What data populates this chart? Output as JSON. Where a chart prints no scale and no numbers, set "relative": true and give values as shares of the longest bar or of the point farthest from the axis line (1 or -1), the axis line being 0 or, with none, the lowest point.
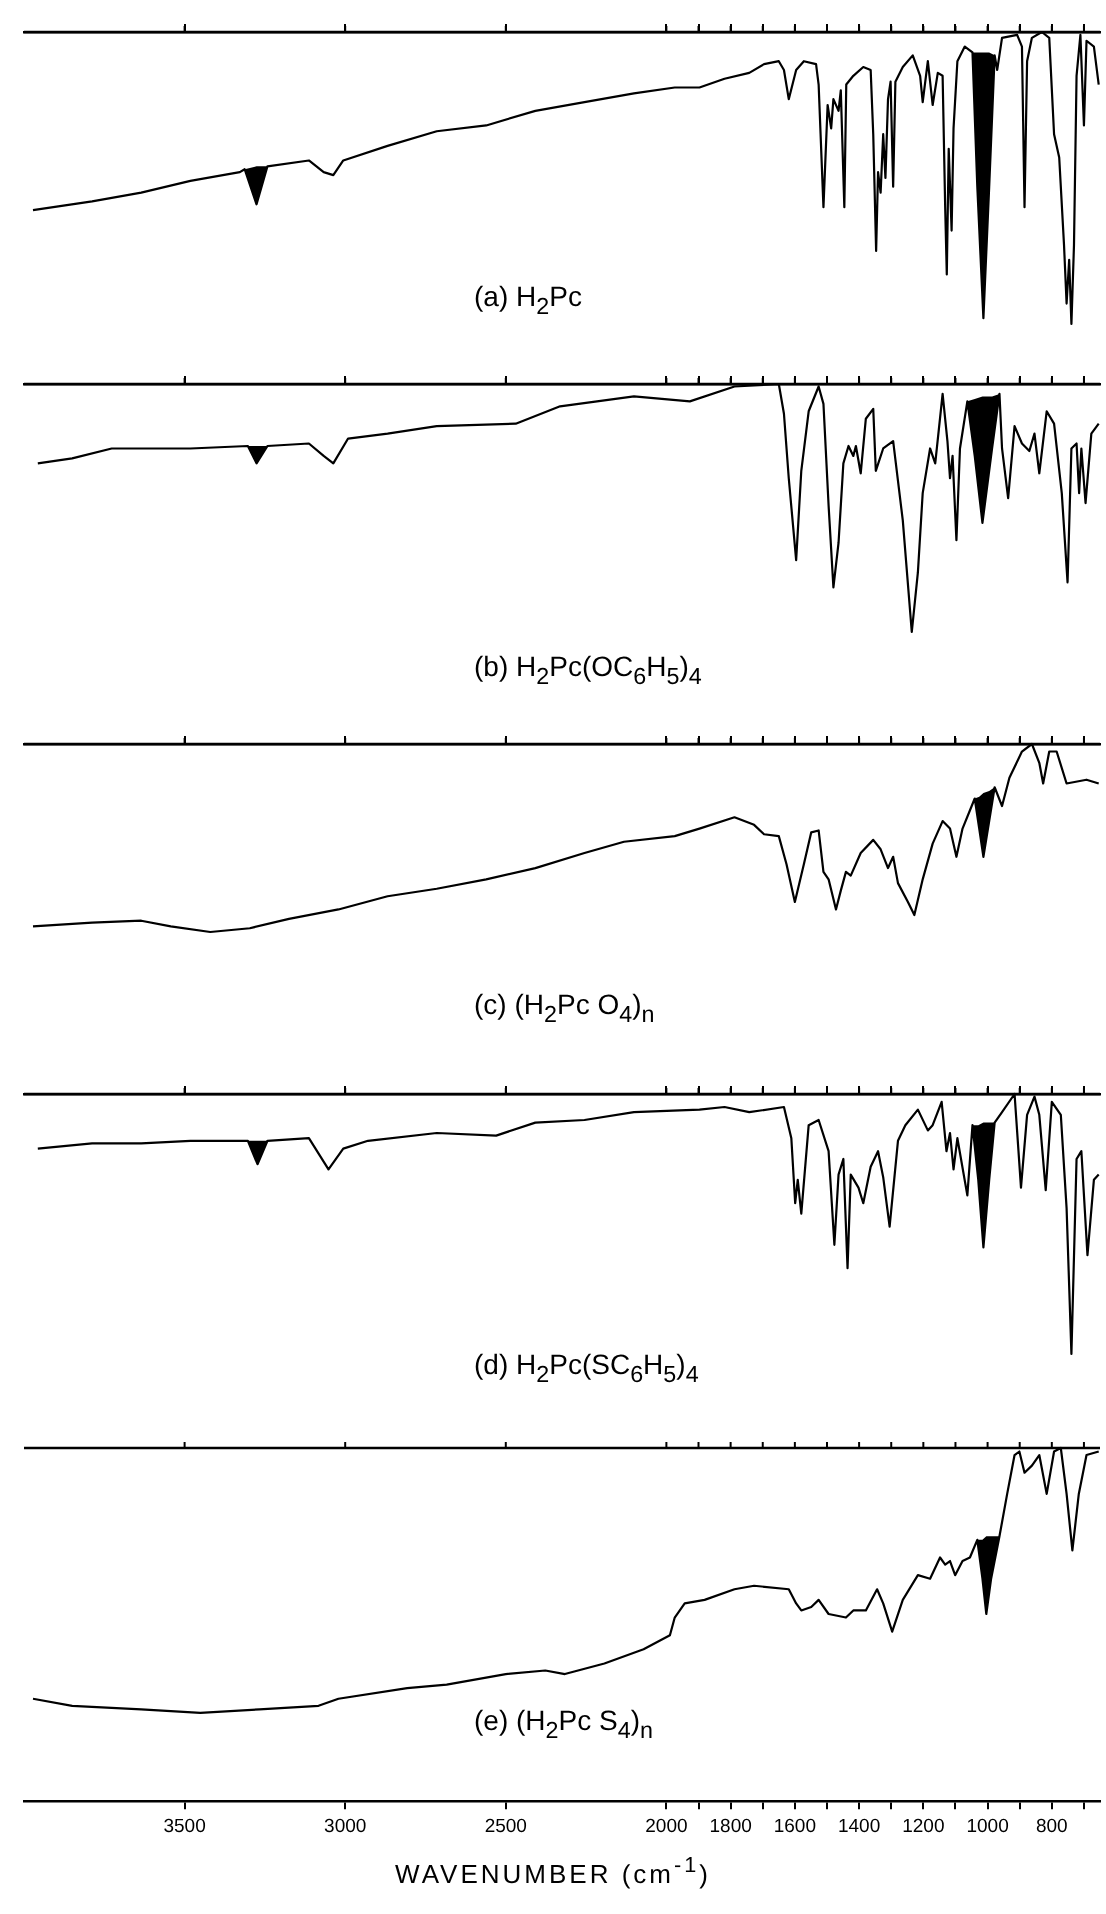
{
  "chart_data": [
    {
      "type": "line",
      "title": "(a) H$_{2}$Pc",
      "relative": true,
      "xlim": [
        4000,
        650
      ],
      "tick_labels": false,
      "xticks": [
        3500,
        3000,
        2500,
        2000,
        {
          "value": 1900,
          "label": null
        },
        1800,
        {
          "value": 1700,
          "label": null
        },
        1600,
        {
          "value": 1500,
          "label": null
        },
        1400,
        {
          "value": 1300,
          "label": null
        },
        1200,
        {
          "value": 1100,
          "label": null
        },
        1000,
        {
          "value": 900,
          "label": null
        },
        800,
        {
          "value": 700,
          "label": null
        }
      ],
      "series": [
        {
          "color": "#000000",
          "x": [
            3972,
            3788,
            3635,
            3482,
            3328,
            3313,
            3276,
            3242,
            3113,
            3067,
            3037,
            3006,
            2868,
            2715,
            2561,
            2408,
            2255,
            2101,
            1974,
            1897,
            1819,
            1742,
            1696,
            1650,
            1634,
            1619,
            1596,
            1572,
            1534,
            1526,
            1511,
            1498,
            1487,
            1480,
            1464,
            1457,
            1446,
            1440,
            1418,
            1387,
            1364,
            1356,
            1347,
            1341,
            1333,
            1325,
            1318,
            1310,
            1302,
            1294,
            1287,
            1264,
            1233,
            1210,
            1202,
            1186,
            1171,
            1155,
            1140,
            1132,
            1127,
            1121,
            1112,
            1106,
            1094,
            1071,
            1047,
            1032,
            1013,
            995,
            978,
            970,
            955,
            908,
            893,
            885,
            877,
            862,
            831,
            808,
            793,
            777,
            762,
            754,
            746,
            739,
            731,
            723,
            711,
            700,
            692,
            669,
            654
          ],
          "values": [
            0.39,
            0.42,
            0.45,
            0.49,
            0.52,
            0.53,
            0.41,
            0.54,
            0.56,
            0.52,
            0.51,
            0.56,
            0.61,
            0.66,
            0.68,
            0.73,
            0.76,
            0.79,
            0.81,
            0.81,
            0.84,
            0.86,
            0.89,
            0.9,
            0.87,
            0.77,
            0.87,
            0.9,
            0.89,
            0.82,
            0.4,
            0.75,
            0.67,
            0.77,
            0.73,
            0.8,
            0.4,
            0.82,
            0.85,
            0.88,
            0.87,
            0.65,
            0.25,
            0.52,
            0.45,
            0.65,
            0.5,
            0.77,
            0.83,
            0.47,
            0.83,
            0.88,
            0.92,
            0.85,
            0.76,
            0.9,
            0.75,
            0.86,
            0.85,
            0.4,
            0.17,
            0.6,
            0.32,
            0.67,
            0.9,
            0.95,
            0.93,
            0.47,
            0.02,
            0.47,
            0.92,
            0.87,
            0.98,
            0.99,
            0.95,
            0.4,
            0.9,
            0.98,
            1,
            0.98,
            0.65,
            0.57,
            0.27,
            0.07,
            0.22,
            0,
            0.27,
            0.85,
            0.99,
            0.68,
            0.97,
            0.95,
            0.82
          ],
          "lower": [
            null,
            null,
            null,
            null,
            null,
            0.53,
            0.41,
            0.54,
            null,
            null,
            null,
            null,
            null,
            null,
            null,
            null,
            null,
            null,
            null,
            null,
            null,
            null,
            null,
            null,
            null,
            null,
            null,
            null,
            null,
            null,
            null,
            null,
            null,
            null,
            null,
            null,
            null,
            null,
            null,
            null,
            null,
            null,
            null,
            null,
            null,
            null,
            null,
            null,
            null,
            null,
            null,
            null,
            null,
            null,
            null,
            null,
            null,
            null,
            null,
            null,
            null,
            null,
            null,
            null,
            null,
            null,
            0.93,
            0.47,
            0.02,
            0.47,
            0.92,
            null,
            null,
            null,
            null,
            null,
            null,
            null,
            null,
            null,
            null,
            null,
            null,
            null,
            null,
            null,
            null,
            null,
            null,
            null,
            null,
            null,
            null
          ],
          "upper": [
            null,
            null,
            null,
            null,
            null,
            0.53,
            0.54,
            0.54,
            null,
            null,
            null,
            null,
            null,
            null,
            null,
            null,
            null,
            null,
            null,
            null,
            null,
            null,
            null,
            null,
            null,
            null,
            null,
            null,
            null,
            null,
            null,
            null,
            null,
            null,
            null,
            null,
            null,
            null,
            null,
            null,
            null,
            null,
            null,
            null,
            null,
            null,
            null,
            null,
            null,
            null,
            null,
            null,
            null,
            null,
            null,
            null,
            null,
            null,
            null,
            null,
            null,
            null,
            null,
            null,
            null,
            null,
            0.93,
            0.93,
            0.93,
            0.93,
            0.92,
            null,
            null,
            null,
            null,
            null,
            null,
            null,
            null,
            null,
            null,
            null,
            null,
            null,
            null,
            null,
            null,
            null,
            null,
            null,
            null,
            null,
            null
          ]
        }
      ]
    },
    {
      "type": "line",
      "title": "(b) H$_{2}$Pc(OC$_{6}$H$_{5}$)$_{4}$",
      "relative": true,
      "xlim": [
        4000,
        650
      ],
      "tick_labels": false,
      "xticks": [
        3500,
        3000,
        2500,
        2000,
        {
          "value": 1900,
          "label": null
        },
        1800,
        {
          "value": 1700,
          "label": null
        },
        1600,
        {
          "value": 1500,
          "label": null
        },
        1400,
        {
          "value": 1300,
          "label": null
        },
        1200,
        {
          "value": 1100,
          "label": null
        },
        1000,
        {
          "value": 900,
          "label": null
        },
        800,
        {
          "value": 700,
          "label": null
        }
      ],
      "series": [
        {
          "color": "#000000",
          "x": [
            3957,
            3850,
            3727,
            3482,
            3303,
            3276,
            3242,
            3113,
            3067,
            3037,
            2991,
            2868,
            2715,
            2469,
            2331,
            2101,
            1927,
            1788,
            1650,
            1634,
            1619,
            1596,
            1580,
            1557,
            1526,
            1511,
            1495,
            1480,
            1464,
            1449,
            1433,
            1418,
            1410,
            1395,
            1379,
            1356,
            1348,
            1325,
            1294,
            1264,
            1236,
            1217,
            1202,
            1179,
            1163,
            1140,
            1125,
            1117,
            1109,
            1097,
            1086,
            1063,
            1040,
            1016,
            986,
            963,
            955,
            936,
            916,
            893,
            870,
            854,
            839,
            816,
            793,
            769,
            751,
            739,
            723,
            715,
            708,
            695,
            677,
            654
          ],
          "values": [
            0.68,
            0.7,
            0.74,
            0.74,
            0.75,
            0.68,
            0.75,
            0.76,
            0.71,
            0.68,
            0.78,
            0.8,
            0.83,
            0.84,
            0.91,
            0.95,
            0.93,
            0.99,
            1,
            0.88,
            0.62,
            0.29,
            0.65,
            0.89,
            0.99,
            0.92,
            0.51,
            0.18,
            0.36,
            0.68,
            0.75,
            0.71,
            0.75,
            0.64,
            0.86,
            0.9,
            0.65,
            0.74,
            0.77,
            0.45,
            0,
            0.24,
            0.56,
            0.74,
            0.68,
            0.96,
            0.77,
            0.62,
            0.71,
            0.37,
            0.74,
            0.93,
            0.71,
            0.44,
            0.74,
            0.96,
            0.74,
            0.54,
            0.83,
            0.76,
            0.73,
            0.8,
            0.64,
            0.89,
            0.84,
            0.56,
            0.2,
            0.74,
            0.76,
            0.56,
            0.74,
            0.52,
            0.8,
            0.84
          ],
          "lower": [
            null,
            null,
            null,
            null,
            0.75,
            0.68,
            0.75,
            null,
            null,
            null,
            null,
            null,
            null,
            null,
            null,
            null,
            null,
            null,
            null,
            null,
            null,
            null,
            null,
            null,
            null,
            null,
            null,
            null,
            null,
            null,
            null,
            null,
            null,
            null,
            null,
            null,
            null,
            null,
            null,
            null,
            null,
            null,
            null,
            null,
            null,
            null,
            null,
            null,
            null,
            null,
            null,
            0.93,
            0.71,
            0.44,
            0.74,
            0.96,
            null,
            null,
            null,
            null,
            null,
            null,
            null,
            null,
            null,
            null,
            null,
            null,
            null,
            null,
            null,
            null,
            null,
            null
          ],
          "upper": [
            null,
            null,
            null,
            null,
            0.75,
            0.75,
            0.75,
            null,
            null,
            null,
            null,
            null,
            null,
            null,
            null,
            null,
            null,
            null,
            null,
            null,
            null,
            null,
            null,
            null,
            null,
            null,
            null,
            null,
            null,
            null,
            null,
            null,
            null,
            null,
            null,
            null,
            null,
            null,
            null,
            null,
            null,
            null,
            null,
            null,
            null,
            null,
            null,
            null,
            null,
            null,
            null,
            0.93,
            0.94,
            0.95,
            0.95,
            0.96,
            null,
            null,
            null,
            null,
            null,
            null,
            null,
            null,
            null,
            null,
            null,
            null,
            null,
            null,
            null,
            null,
            null,
            null
          ]
        }
      ]
    },
    {
      "type": "line",
      "title": "(c) (H$_{2}$Pc O$_{4}$)$_{n}$",
      "relative": true,
      "xlim": [
        4000,
        650
      ],
      "tick_labels": false,
      "xticks": [
        3500,
        3000,
        2500,
        2000,
        {
          "value": 1900,
          "label": null
        },
        1800,
        {
          "value": 1700,
          "label": null
        },
        1600,
        {
          "value": 1500,
          "label": null
        },
        1400,
        {
          "value": 1300,
          "label": null
        },
        1200,
        {
          "value": 1100,
          "label": null
        },
        1000,
        {
          "value": 900,
          "label": null
        },
        800,
        {
          "value": 700,
          "label": null
        }
      ],
      "series": [
        {
          "color": "#000000",
          "x": [
            3972,
            3788,
            3635,
            3543,
            3420,
            3297,
            3175,
            3021,
            2868,
            2715,
            2561,
            2408,
            2255,
            2132,
            1974,
            1897,
            1788,
            1727,
            1696,
            1650,
            1626,
            1600,
            1572,
            1549,
            1526,
            1511,
            1495,
            1472,
            1457,
            1441,
            1426,
            1395,
            1356,
            1333,
            1310,
            1294,
            1279,
            1248,
            1228,
            1202,
            1171,
            1140,
            1117,
            1097,
            1078,
            1040,
            1026,
            1013,
            995,
            978,
            955,
            932,
            893,
            862,
            839,
            827,
            808,
            785,
            754,
            692,
            654
          ],
          "values": [
            0.03,
            0.05,
            0.06,
            0.03,
            0,
            0.02,
            0.07,
            0.12,
            0.19,
            0.23,
            0.28,
            0.34,
            0.42,
            0.48,
            0.51,
            0.55,
            0.61,
            0.57,
            0.52,
            0.51,
            0.36,
            0.16,
            0.36,
            0.53,
            0.54,
            0.32,
            0.28,
            0.12,
            0.22,
            0.32,
            0.3,
            0.42,
            0.49,
            0.44,
            0.34,
            0.4,
            0.26,
            0.16,
            0.09,
            0.28,
            0.47,
            0.59,
            0.55,
            0.4,
            0.55,
            0.71,
            0.55,
            0.4,
            0.59,
            0.77,
            0.67,
            0.82,
            0.96,
            1,
            0.9,
            0.79,
            0.96,
            0.96,
            0.79,
            0.81,
            0.79
          ],
          "lower": [
            null,
            null,
            null,
            null,
            null,
            null,
            null,
            null,
            null,
            null,
            null,
            null,
            null,
            null,
            null,
            null,
            null,
            null,
            null,
            null,
            null,
            null,
            null,
            null,
            null,
            null,
            null,
            null,
            null,
            null,
            null,
            null,
            null,
            null,
            null,
            null,
            null,
            null,
            null,
            null,
            null,
            null,
            null,
            null,
            null,
            0.71,
            0.55,
            0.4,
            0.59,
            0.77,
            null,
            null,
            null,
            null,
            null,
            null,
            null,
            null,
            null,
            null,
            null
          ],
          "upper": [
            null,
            null,
            null,
            null,
            null,
            null,
            null,
            null,
            null,
            null,
            null,
            null,
            null,
            null,
            null,
            null,
            null,
            null,
            null,
            null,
            null,
            null,
            null,
            null,
            null,
            null,
            null,
            null,
            null,
            null,
            null,
            null,
            null,
            null,
            null,
            null,
            null,
            null,
            null,
            null,
            null,
            null,
            null,
            null,
            null,
            0.71,
            0.72,
            0.74,
            0.75,
            0.77,
            null,
            null,
            null,
            null,
            null,
            null,
            null,
            null,
            null,
            null,
            null
          ]
        }
      ]
    },
    {
      "type": "line",
      "title": "(d) H$_{2}$Pc(SC$_{6}$H$_{5}$)$_{4}$",
      "relative": true,
      "xlim": [
        4000,
        650
      ],
      "tick_labels": false,
      "xticks": [
        3500,
        3000,
        2500,
        2000,
        {
          "value": 1900,
          "label": null
        },
        1800,
        {
          "value": 1700,
          "label": null
        },
        1600,
        {
          "value": 1500,
          "label": null
        },
        1400,
        {
          "value": 1300,
          "label": null
        },
        1200,
        {
          "value": 1100,
          "label": null
        },
        1000,
        {
          "value": 900,
          "label": null
        },
        800,
        {
          "value": 700,
          "label": null
        }
      ],
      "series": [
        {
          "color": "#000000",
          "x": [
            3957,
            3788,
            3635,
            3482,
            3303,
            3273,
            3242,
            3113,
            3052,
            3006,
            2929,
            2715,
            2530,
            2408,
            2255,
            2101,
            1897,
            1819,
            1742,
            1634,
            1611,
            1599,
            1591,
            1580,
            1557,
            1526,
            1495,
            1477,
            1464,
            1449,
            1436,
            1426,
            1402,
            1387,
            1364,
            1341,
            1325,
            1305,
            1279,
            1256,
            1217,
            1186,
            1171,
            1143,
            1128,
            1117,
            1106,
            1094,
            1063,
            1047,
            1029,
            1013,
            995,
            978,
            955,
            916,
            896,
            877,
            854,
            839,
            819,
            800,
            772,
            754,
            739,
            723,
            708,
            689,
            669,
            654
          ],
          "values": [
            0.79,
            0.81,
            0.81,
            0.82,
            0.82,
            0.73,
            0.82,
            0.83,
            0.71,
            0.79,
            0.82,
            0.85,
            0.84,
            0.89,
            0.9,
            0.93,
            0.94,
            0.95,
            0.93,
            0.95,
            0.83,
            0.58,
            0.67,
            0.54,
            0.88,
            0.9,
            0.78,
            0.42,
            0.69,
            0.75,
            0.33,
            0.69,
            0.64,
            0.58,
            0.72,
            0.78,
            0.68,
            0.49,
            0.82,
            0.88,
            0.94,
            0.86,
            0.88,
            0.97,
            0.78,
            0.85,
            0.71,
            0.83,
            0.61,
            0.88,
            0.67,
            0.41,
            0.67,
            0.89,
            0.93,
            1,
            0.64,
            0.92,
            0.99,
            0.92,
            0.63,
            0.97,
            0.92,
            0.56,
            0,
            0.75,
            0.78,
            0.38,
            0.67,
            0.69
          ],
          "lower": [
            null,
            null,
            null,
            null,
            0.82,
            0.73,
            0.82,
            null,
            null,
            null,
            null,
            null,
            null,
            null,
            null,
            null,
            null,
            null,
            null,
            null,
            null,
            null,
            null,
            null,
            null,
            null,
            null,
            null,
            null,
            null,
            null,
            null,
            null,
            null,
            null,
            null,
            null,
            null,
            null,
            null,
            null,
            null,
            null,
            null,
            null,
            null,
            null,
            null,
            null,
            0.88,
            0.67,
            0.41,
            0.67,
            0.89,
            null,
            null,
            null,
            null,
            null,
            null,
            null,
            null,
            null,
            null,
            null,
            null,
            null,
            null,
            null,
            null
          ],
          "upper": [
            null,
            null,
            null,
            null,
            0.82,
            0.82,
            0.82,
            null,
            null,
            null,
            null,
            null,
            null,
            null,
            null,
            null,
            null,
            null,
            null,
            null,
            null,
            null,
            null,
            null,
            null,
            null,
            null,
            null,
            null,
            null,
            null,
            null,
            null,
            null,
            null,
            null,
            null,
            null,
            null,
            null,
            null,
            null,
            null,
            null,
            null,
            null,
            null,
            null,
            null,
            0.88,
            0.88,
            0.89,
            0.89,
            0.89,
            null,
            null,
            null,
            null,
            null,
            null,
            null,
            null,
            null,
            null,
            null,
            null,
            null,
            null,
            null,
            null
          ]
        }
      ]
    },
    {
      "type": "line",
      "title": "(e) (H$_{2}$Pc S$_{4}$)$_{n}$",
      "relative": true,
      "xlim": [
        4000,
        650
      ],
      "tick_labels": "x",
      "xlabel": "WAVENUMBER (cm$^{-1}$)",
      "xticks": [
        3500,
        3000,
        2500,
        2000,
        {
          "value": 1900,
          "label": null
        },
        1800,
        {
          "value": 1700,
          "label": null
        },
        1600,
        {
          "value": 1500,
          "label": null
        },
        1400,
        {
          "value": 1300,
          "label": null
        },
        1200,
        {
          "value": 1100,
          "label": null
        },
        1000,
        {
          "value": 900,
          "label": null
        },
        800,
        {
          "value": 700,
          "label": null
        }
      ],
      "series": [
        {
          "color": "#000000",
          "x": [
            3972,
            3850,
            3635,
            3451,
            3267,
            3083,
            3021,
            2807,
            2684,
            2500,
            2377,
            2316,
            2193,
            2071,
            1989,
            1974,
            1943,
            1881,
            1788,
            1727,
            1619,
            1596,
            1580,
            1549,
            1526,
            1495,
            1441,
            1418,
            1379,
            1344,
            1325,
            1297,
            1264,
            1217,
            1179,
            1148,
            1132,
            1117,
            1101,
            1078,
            1055,
            1032,
            1016,
            1004,
            989,
            963,
            939,
            916,
            901,
            885,
            862,
            839,
            816,
            793,
            772,
            754,
            736,
            716,
            692,
            654
          ],
          "values": [
            0.29,
            0.27,
            0.26,
            0.25,
            0.26,
            0.27,
            0.29,
            0.32,
            0.33,
            0.36,
            0.37,
            0.36,
            0.39,
            0.43,
            0.47,
            0.52,
            0.56,
            0.57,
            0.6,
            0.61,
            0.6,
            0.56,
            0.54,
            0.55,
            0.57,
            0.53,
            0.52,
            0.54,
            0.54,
            0.6,
            0.56,
            0.48,
            0.57,
            0.64,
            0.63,
            0.69,
            0.67,
            0.68,
            0.64,
            0.68,
            0.69,
            0.74,
            0.63,
            0.53,
            0.63,
            0.75,
            0.87,
            0.98,
            0.99,
            0.93,
            0.95,
            0.98,
            0.87,
            0.99,
            1,
            0.87,
            0.71,
            0.87,
            0.98,
            0.99
          ],
          "lower": [
            null,
            null,
            null,
            null,
            null,
            null,
            null,
            null,
            null,
            null,
            null,
            null,
            null,
            null,
            null,
            null,
            null,
            null,
            null,
            null,
            null,
            null,
            null,
            null,
            null,
            null,
            null,
            null,
            null,
            null,
            null,
            null,
            null,
            null,
            null,
            null,
            null,
            null,
            null,
            null,
            null,
            0.74,
            0.63,
            0.53,
            0.63,
            0.75,
            null,
            null,
            null,
            null,
            null,
            null,
            null,
            null,
            null,
            null,
            null,
            null,
            null,
            null
          ],
          "upper": [
            null,
            null,
            null,
            null,
            null,
            null,
            null,
            null,
            null,
            null,
            null,
            null,
            null,
            null,
            null,
            null,
            null,
            null,
            null,
            null,
            null,
            null,
            null,
            null,
            null,
            null,
            null,
            null,
            null,
            null,
            null,
            null,
            null,
            null,
            null,
            null,
            null,
            null,
            null,
            null,
            null,
            0.74,
            0.74,
            0.75,
            0.75,
            0.75,
            null,
            null,
            null,
            null,
            null,
            null,
            null,
            null,
            null,
            null,
            null,
            null,
            null,
            null
          ]
        }
      ]
    }
  ]
}
